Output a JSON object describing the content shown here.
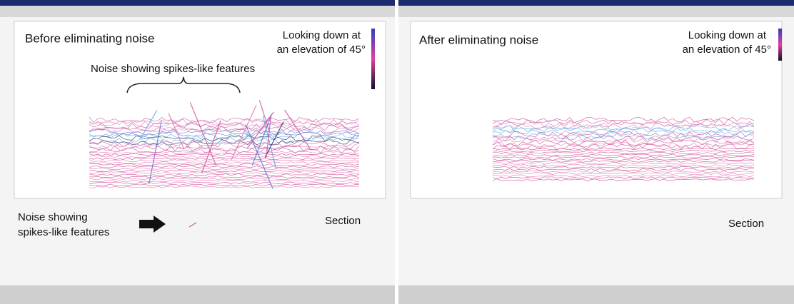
{
  "windows": [
    {
      "plot": {
        "title": "Before eliminating noise",
        "view_note": [
          "Looking down at",
          "an elevation of 45°"
        ],
        "annotation": "Noise showing spikes-like features"
      },
      "section": {
        "annotation": [
          "Noise showing",
          "spikes-like features"
        ],
        "label": "Section"
      }
    },
    {
      "plot": {
        "title": "After eliminating noise",
        "view_note": [
          "Looking down at",
          "an elevation of 45°"
        ]
      },
      "section": {
        "label": "Section"
      }
    }
  ]
}
